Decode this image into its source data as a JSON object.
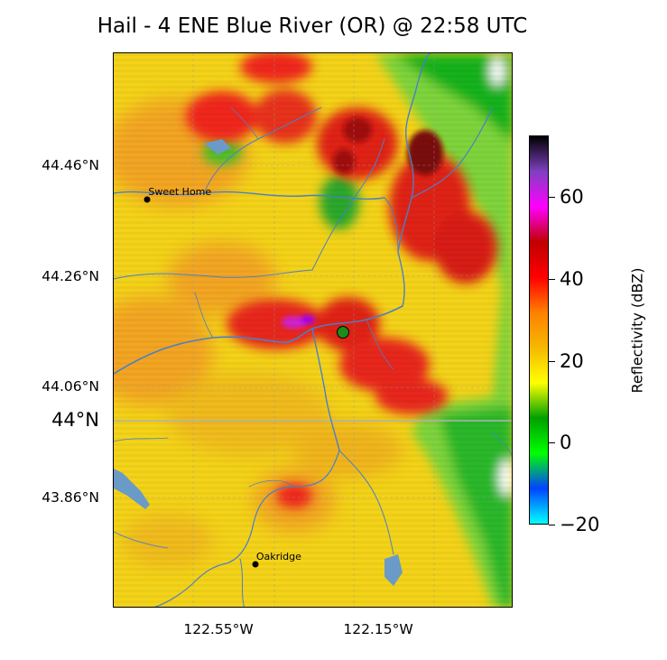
{
  "title": "Hail - 4 ENE Blue River (OR) @ 22:58 UTC",
  "latitude_labels": [
    {
      "text": "44.46°N",
      "lat": 44.46,
      "emphasis": false
    },
    {
      "text": "44.26°N",
      "lat": 44.26,
      "emphasis": false
    },
    {
      "text": "44.06°N",
      "lat": 44.06,
      "emphasis": false
    },
    {
      "text": "44°N",
      "lat": 44.0,
      "emphasis": true
    },
    {
      "text": "43.86°N",
      "lat": 43.86,
      "emphasis": false
    }
  ],
  "longitude_labels": [
    {
      "text": "122.55°W",
      "lon": -122.55
    },
    {
      "text": "122.15°W",
      "lon": -122.15
    }
  ],
  "colorbar": {
    "title": "Reflectivity (dBZ)",
    "range": [
      -20,
      75
    ],
    "ticks": [
      {
        "value": -20,
        "label": "−20"
      },
      {
        "value": 0,
        "label": "0"
      },
      {
        "value": 20,
        "label": "20"
      },
      {
        "value": 40,
        "label": "40"
      },
      {
        "value": 60,
        "label": "60"
      }
    ],
    "stops": [
      "#00ffff",
      "#0044ff",
      "#00ff00",
      "#00a000",
      "#ffff00",
      "#f5b800",
      "#ff8000",
      "#ff0000",
      "#c00000",
      "#ff00ff",
      "#8040c0",
      "#000000"
    ]
  },
  "cities": [
    {
      "name": "Sweet Home",
      "lat": 44.4,
      "lon": -122.73
    },
    {
      "name": "Oakridge",
      "lat": 43.74,
      "lon": -122.46
    }
  ],
  "event_marker": {
    "lat": 44.16,
    "lon": -122.24,
    "color": "#1a8c1a"
  },
  "colors": {
    "river": "#4a7fc8",
    "lake": "#6a9ac8",
    "marker_edge": "#000000"
  }
}
